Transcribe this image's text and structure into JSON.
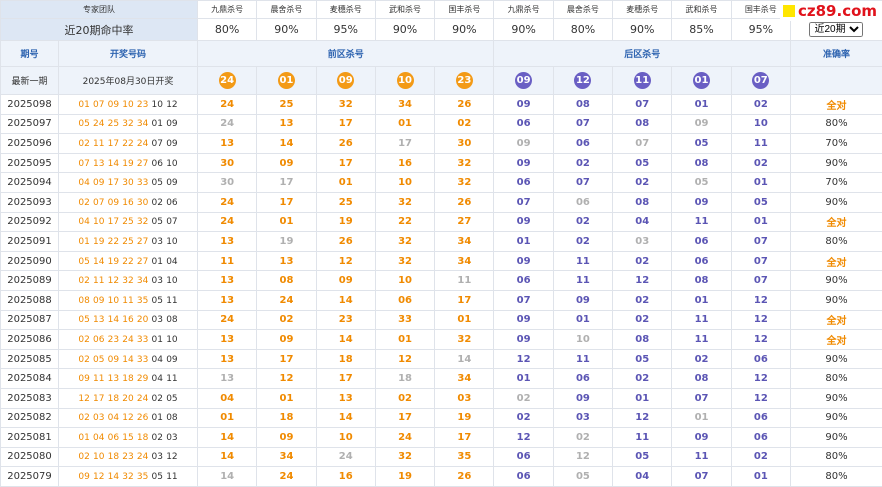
{
  "header": {
    "team_label": "专家团队",
    "experts": [
      "九鼎杀号",
      "晨舍杀号",
      "麦穗杀号",
      "武和杀号",
      "国丰杀号",
      "九鼎杀号",
      "晨舍杀号",
      "麦穗杀号",
      "武和杀号",
      "国丰杀号"
    ],
    "rate_label": "近20期命中率",
    "rates": [
      "80%",
      "90%",
      "95%",
      "90%",
      "90%",
      "90%",
      "80%",
      "90%",
      "85%",
      "95%"
    ],
    "select": "近20期",
    "logo": "cz89.com"
  },
  "columns": {
    "issue": "期号",
    "draw": "开奖号码",
    "front": "前区杀号",
    "back": "后区杀号",
    "accuracy": "准确率"
  },
  "latest": {
    "label": "最新一期",
    "date": "2025年08月30日开奖",
    "front": [
      "24",
      "01",
      "09",
      "10",
      "23"
    ],
    "back": [
      "09",
      "12",
      "11",
      "01",
      "07"
    ]
  },
  "rows": [
    {
      "issue": "2025098",
      "front_draw": [
        "01",
        "07",
        "09",
        "10",
        "23"
      ],
      "back_draw": [
        "10",
        "12"
      ],
      "front_kill": [
        "24",
        "25",
        "32",
        "34",
        "26"
      ],
      "back_kill": [
        "09",
        "08",
        "07",
        "01",
        "02"
      ],
      "accuracy": "全对"
    },
    {
      "issue": "2025097",
      "front_draw": [
        "05",
        "24",
        "25",
        "32",
        "34"
      ],
      "back_draw": [
        "01",
        "09"
      ],
      "front_kill": [
        "24",
        "13",
        "17",
        "01",
        "02"
      ],
      "back_kill": [
        "06",
        "07",
        "08",
        "09",
        "10"
      ],
      "accuracy": "80%"
    },
    {
      "issue": "2025096",
      "front_draw": [
        "02",
        "11",
        "17",
        "22",
        "24"
      ],
      "back_draw": [
        "07",
        "09"
      ],
      "front_kill": [
        "13",
        "14",
        "26",
        "17",
        "30"
      ],
      "back_kill": [
        "09",
        "06",
        "07",
        "05",
        "11"
      ],
      "accuracy": "70%"
    },
    {
      "issue": "2025095",
      "front_draw": [
        "07",
        "13",
        "14",
        "19",
        "27"
      ],
      "back_draw": [
        "06",
        "10"
      ],
      "front_kill": [
        "30",
        "09",
        "17",
        "16",
        "32"
      ],
      "back_kill": [
        "09",
        "02",
        "05",
        "08",
        "02"
      ],
      "accuracy": "90%"
    },
    {
      "issue": "2025094",
      "front_draw": [
        "04",
        "09",
        "17",
        "30",
        "33"
      ],
      "back_draw": [
        "05",
        "09"
      ],
      "front_kill": [
        "30",
        "17",
        "01",
        "10",
        "32"
      ],
      "back_kill": [
        "06",
        "07",
        "02",
        "05",
        "01"
      ],
      "accuracy": "70%"
    },
    {
      "issue": "2025093",
      "front_draw": [
        "02",
        "07",
        "09",
        "16",
        "30"
      ],
      "back_draw": [
        "02",
        "06"
      ],
      "front_kill": [
        "24",
        "17",
        "25",
        "32",
        "26"
      ],
      "back_kill": [
        "07",
        "06",
        "08",
        "09",
        "05"
      ],
      "accuracy": "90%"
    },
    {
      "issue": "2025092",
      "front_draw": [
        "04",
        "10",
        "17",
        "25",
        "32"
      ],
      "back_draw": [
        "05",
        "07"
      ],
      "front_kill": [
        "24",
        "01",
        "19",
        "22",
        "27"
      ],
      "back_kill": [
        "09",
        "02",
        "04",
        "11",
        "01"
      ],
      "accuracy": "全对"
    },
    {
      "issue": "2025091",
      "front_draw": [
        "01",
        "19",
        "22",
        "25",
        "27"
      ],
      "back_draw": [
        "03",
        "10"
      ],
      "front_kill": [
        "13",
        "19",
        "26",
        "32",
        "34"
      ],
      "back_kill": [
        "01",
        "02",
        "03",
        "06",
        "07"
      ],
      "accuracy": "80%"
    },
    {
      "issue": "2025090",
      "front_draw": [
        "05",
        "14",
        "19",
        "22",
        "27"
      ],
      "back_draw": [
        "01",
        "04"
      ],
      "front_kill": [
        "11",
        "13",
        "12",
        "32",
        "34"
      ],
      "back_kill": [
        "09",
        "11",
        "02",
        "06",
        "07"
      ],
      "accuracy": "全对"
    },
    {
      "issue": "2025089",
      "front_draw": [
        "02",
        "11",
        "12",
        "32",
        "34"
      ],
      "back_draw": [
        "03",
        "10"
      ],
      "front_kill": [
        "13",
        "08",
        "09",
        "10",
        "11"
      ],
      "back_kill": [
        "06",
        "11",
        "12",
        "08",
        "07"
      ],
      "accuracy": "90%"
    },
    {
      "issue": "2025088",
      "front_draw": [
        "08",
        "09",
        "10",
        "11",
        "35"
      ],
      "back_draw": [
        "05",
        "11"
      ],
      "front_kill": [
        "13",
        "24",
        "14",
        "06",
        "17"
      ],
      "back_kill": [
        "07",
        "09",
        "02",
        "01",
        "12"
      ],
      "accuracy": "90%"
    },
    {
      "issue": "2025087",
      "front_draw": [
        "05",
        "13",
        "14",
        "16",
        "20"
      ],
      "back_draw": [
        "03",
        "08"
      ],
      "front_kill": [
        "24",
        "02",
        "23",
        "33",
        "01"
      ],
      "back_kill": [
        "09",
        "01",
        "02",
        "11",
        "12"
      ],
      "accuracy": "全对"
    },
    {
      "issue": "2025086",
      "front_draw": [
        "02",
        "06",
        "23",
        "24",
        "33"
      ],
      "back_draw": [
        "01",
        "10"
      ],
      "front_kill": [
        "13",
        "09",
        "14",
        "01",
        "32"
      ],
      "back_kill": [
        "09",
        "10",
        "08",
        "11",
        "12"
      ],
      "accuracy": "全对"
    },
    {
      "issue": "2025085",
      "front_draw": [
        "02",
        "05",
        "09",
        "14",
        "33"
      ],
      "back_draw": [
        "04",
        "09"
      ],
      "front_kill": [
        "13",
        "17",
        "18",
        "12",
        "14"
      ],
      "back_kill": [
        "12",
        "11",
        "05",
        "02",
        "06"
      ],
      "accuracy": "90%"
    },
    {
      "issue": "2025084",
      "front_draw": [
        "09",
        "11",
        "13",
        "18",
        "29"
      ],
      "back_draw": [
        "04",
        "11"
      ],
      "front_kill": [
        "13",
        "12",
        "17",
        "18",
        "34"
      ],
      "back_kill": [
        "01",
        "06",
        "02",
        "08",
        "12"
      ],
      "accuracy": "80%"
    },
    {
      "issue": "2025083",
      "front_draw": [
        "12",
        "17",
        "18",
        "20",
        "24"
      ],
      "back_draw": [
        "02",
        "05"
      ],
      "front_kill": [
        "04",
        "01",
        "13",
        "02",
        "03"
      ],
      "back_kill": [
        "02",
        "09",
        "01",
        "07",
        "12"
      ],
      "accuracy": "90%"
    },
    {
      "issue": "2025082",
      "front_draw": [
        "02",
        "03",
        "04",
        "12",
        "26"
      ],
      "back_draw": [
        "01",
        "08"
      ],
      "front_kill": [
        "01",
        "18",
        "14",
        "17",
        "19"
      ],
      "back_kill": [
        "02",
        "03",
        "12",
        "01",
        "06"
      ],
      "accuracy": "90%"
    },
    {
      "issue": "2025081",
      "front_draw": [
        "01",
        "04",
        "06",
        "15",
        "18"
      ],
      "back_draw": [
        "02",
        "03"
      ],
      "front_kill": [
        "14",
        "09",
        "10",
        "24",
        "17"
      ],
      "back_kill": [
        "12",
        "02",
        "11",
        "09",
        "06"
      ],
      "accuracy": "90%"
    },
    {
      "issue": "2025080",
      "front_draw": [
        "02",
        "10",
        "18",
        "23",
        "24"
      ],
      "back_draw": [
        "03",
        "12"
      ],
      "front_kill": [
        "14",
        "34",
        "24",
        "32",
        "35"
      ],
      "back_kill": [
        "06",
        "12",
        "05",
        "11",
        "02"
      ],
      "accuracy": "80%"
    },
    {
      "issue": "2025079",
      "front_draw": [
        "09",
        "12",
        "14",
        "32",
        "35"
      ],
      "back_draw": [
        "05",
        "11"
      ],
      "front_kill": [
        "14",
        "24",
        "16",
        "19",
        "26"
      ],
      "back_kill": [
        "06",
        "05",
        "04",
        "07",
        "01"
      ],
      "accuracy": "80%"
    }
  ]
}
